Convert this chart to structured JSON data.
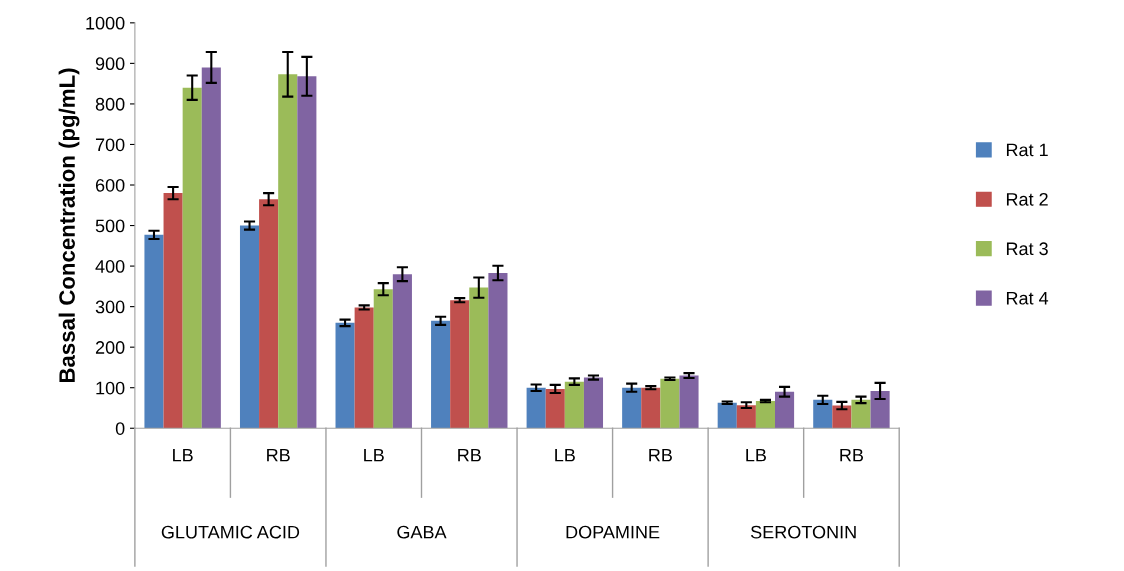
{
  "chart_data": {
    "type": "bar",
    "ylabel": "Bassal Concentration (pg/mL)",
    "categories": [
      "LB",
      "RB",
      "LB",
      "RB",
      "LB",
      "RB",
      "LB",
      "RB"
    ],
    "annotations": [
      "GLUTAMIC ACID",
      "GABA",
      "DOPAMINE",
      "SEROTONIN"
    ],
    "series": [
      {
        "name": "Rat 1",
        "color": "#4f81bd",
        "values": [
          477,
          500,
          260,
          265,
          100,
          100,
          63,
          70
        ],
        "errors": [
          10,
          10,
          8,
          10,
          8,
          10,
          3,
          10
        ]
      },
      {
        "name": "Rat 2",
        "color": "#c0504d",
        "values": [
          580,
          565,
          298,
          316,
          97,
          100,
          57,
          56
        ],
        "errors": [
          15,
          15,
          5,
          5,
          10,
          4,
          7,
          9
        ]
      },
      {
        "name": "Rat 3",
        "color": "#9bbb59",
        "values": [
          840,
          873,
          343,
          347,
          115,
          122,
          67,
          70
        ],
        "errors": [
          30,
          55,
          15,
          25,
          8,
          3,
          3,
          8
        ]
      },
      {
        "name": "Rat 4",
        "color": "#8064a2",
        "values": [
          890,
          868,
          380,
          383,
          125,
          130,
          90,
          92
        ],
        "errors": [
          38,
          48,
          17,
          18,
          5,
          6,
          12,
          20
        ]
      }
    ],
    "ylim": [
      0,
      1000
    ],
    "yticks": [
      0,
      100,
      200,
      300,
      400,
      500,
      600,
      700,
      800,
      900,
      1000
    ],
    "grid": false,
    "legend": "right"
  }
}
